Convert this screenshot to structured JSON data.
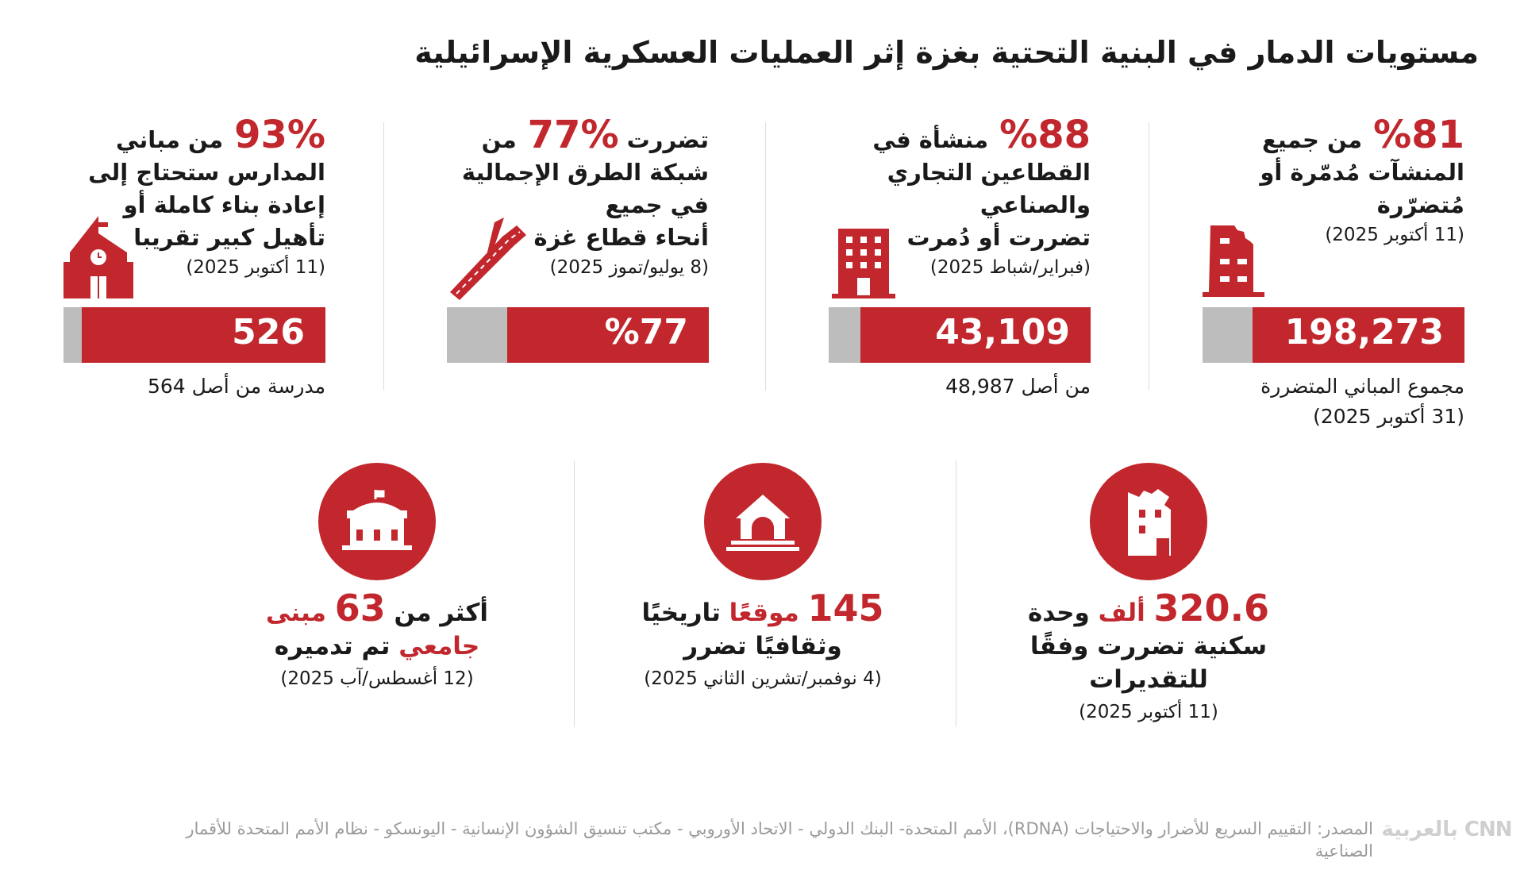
{
  "title": "مستويات الدمار في البنية التحتية بغزة إثر العمليات العسكرية الإسرائيلية",
  "accent_color": "#c1272d",
  "cards": [
    {
      "big": "%81",
      "lines": [
        "من جميع",
        "المنشآت مُدمّرة أو",
        "مُتضرّرة"
      ],
      "date": "(11 أكتوبر 2025)",
      "bar_value": "198,273",
      "bar_fill_percent": 81,
      "below": [
        "مجموع المباني المتضررة",
        "(31 أكتوبر 2025)"
      ],
      "icon": "damaged-building-icon"
    },
    {
      "big": "%88",
      "lines": [
        "منشأة في",
        "القطاعين التجاري",
        "والصناعي",
        "تضررت أو دُمرت"
      ],
      "date": "(فبراير/شباط 2025)",
      "bar_value": "43,109",
      "bar_fill_percent": 88,
      "below": [
        "من أصل 48,987"
      ],
      "icon": "office-building-icon"
    },
    {
      "big": "%77",
      "pre": "تضررت",
      "lines": [
        "من",
        "شبكة الطرق الإجمالية",
        "في جميع",
        "أنحاء قطاع غزة"
      ],
      "date": "(8 يوليو/تموز 2025)",
      "bar_value": "%77",
      "bar_fill_percent": 77,
      "below": [],
      "icon": "road-icon"
    },
    {
      "big": "93%",
      "lines": [
        "من مباني",
        "المدارس ستحتاج إلى",
        "إعادة بناء كاملة أو",
        "تأهيل كبير تقريبا"
      ],
      "date": "(11 أكتوبر 2025)",
      "bar_value": "526",
      "bar_fill_percent": 93,
      "below": [
        "مدرسة من أصل 564"
      ],
      "icon": "school-icon"
    }
  ],
  "bottom": [
    {
      "num": "320.6",
      "red": "ألف",
      "rest": "وحدة",
      "line2": "سكنية تضررت وفقًا",
      "line3": "للتقديرات",
      "date": "(11 أكتوبر 2025)",
      "icon": "ruined-building-icon"
    },
    {
      "num": "145",
      "red": "موقعًا",
      "rest": "تاريخيًا",
      "line2": "وثقافيًا تضرر",
      "date": "(4 نوفمبر/تشرين الثاني 2025)",
      "icon": "historic-site-icon"
    },
    {
      "pre": "أكثر من",
      "num": "63",
      "red": "مبنى",
      "line2_red": "جامعي",
      "line2": "تم تدميره",
      "date": "(12 أغسطس/آب 2025)",
      "icon": "university-icon"
    }
  ],
  "footer": {
    "source": "المصدر: التقييم السريع للأضرار والاحتياجات (RDNA)، الأمم المتحدة- البنك الدولي - الاتحاد الأوروبي - مكتب تنسيق الشؤون الإنسانية - اليونسكو - نظام الأمم المتحدة للأقمار الصناعية",
    "logo": "CNN بالعربية"
  }
}
